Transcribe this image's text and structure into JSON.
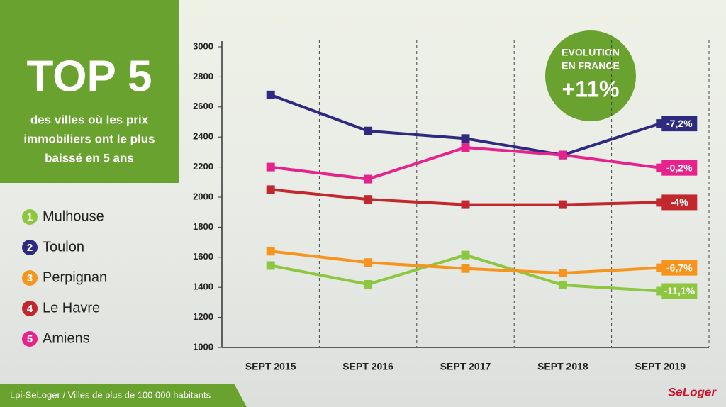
{
  "chart_data": {
    "type": "line",
    "title": "TOP 5",
    "subtitle": [
      "des villes où les prix",
      "immobiliers ont le plus",
      "baissé en 5 ans"
    ],
    "categories": [
      "SEPT 2015",
      "SEPT 2016",
      "SEPT 2017",
      "SEPT 2018",
      "SEPT 2019"
    ],
    "series": [
      {
        "number": 1,
        "name": "Mulhouse",
        "color": "#8dc63f",
        "values": [
          1545,
          1420,
          1615,
          1415,
          1375
        ],
        "end_label": "-11,1%"
      },
      {
        "number": 2,
        "name": "Toulon",
        "color": "#2e2a7f",
        "values": [
          2680,
          2440,
          2390,
          2280,
          2490
        ],
        "end_label": "-7,2%"
      },
      {
        "number": 3,
        "name": "Perpignan",
        "color": "#f7941d",
        "values": [
          1640,
          1565,
          1525,
          1495,
          1530
        ],
        "end_label": "-6,7%"
      },
      {
        "number": 4,
        "name": "Le Havre",
        "color": "#c1272d",
        "values": [
          2050,
          1985,
          1950,
          1950,
          1965
        ],
        "end_label": "-4%"
      },
      {
        "number": 5,
        "name": "Amiens",
        "color": "#e6228c",
        "values": [
          2200,
          2120,
          2330,
          2280,
          2195
        ],
        "end_label": "-0,2%"
      }
    ],
    "ylim": [
      1000,
      3000
    ],
    "yticks": [
      1000,
      1200,
      1400,
      1600,
      1800,
      2000,
      2200,
      2400,
      2600,
      2800,
      3000
    ],
    "grid": false,
    "badge": {
      "lines": [
        "EVOLUTION",
        "EN FRANCE"
      ],
      "value": "+11%"
    },
    "source": "Lpi-SeLoger / Villes de plus de 100 000 habitants",
    "logo": "SeLoger"
  }
}
